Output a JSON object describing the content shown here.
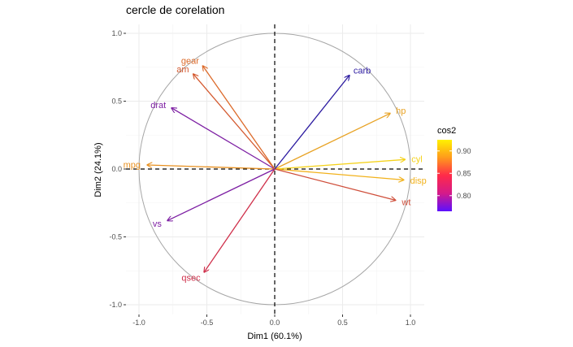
{
  "chart_data": {
    "type": "scatter",
    "title": "cercle de corelation",
    "xlabel": "Dim1 (60.1%)",
    "ylabel": "Dim2 (24.1%)",
    "xlim": [
      -1.0,
      1.1
    ],
    "ylim": [
      -1.0,
      1.0
    ],
    "xticks": [
      "-1.0",
      "-0.5",
      "0.0",
      "0.5",
      "1.0"
    ],
    "yticks": [
      "-1.0",
      "-0.5",
      "0.0",
      "0.5",
      "1.0"
    ],
    "grid": true,
    "unit_circle": true,
    "variables": [
      {
        "name": "mpg",
        "x": -0.94,
        "y": 0.03,
        "cos2": 0.89,
        "color": "#e8901f"
      },
      {
        "name": "cyl",
        "x": 0.96,
        "y": 0.07,
        "cos2": 0.93,
        "color": "#f5d21a"
      },
      {
        "name": "disp",
        "x": 0.95,
        "y": -0.08,
        "cos2": 0.91,
        "color": "#f2b21c"
      },
      {
        "name": "hp",
        "x": 0.85,
        "y": 0.41,
        "cos2": 0.89,
        "color": "#e8a325"
      },
      {
        "name": "drat",
        "x": -0.76,
        "y": 0.45,
        "cos2": 0.78,
        "color": "#7d1fa3"
      },
      {
        "name": "wt",
        "x": 0.89,
        "y": -0.23,
        "cos2": 0.85,
        "color": "#cf4e3a"
      },
      {
        "name": "qsec",
        "x": -0.52,
        "y": -0.76,
        "cos2": 0.83,
        "color": "#cf2f4a"
      },
      {
        "name": "vs",
        "x": -0.79,
        "y": -0.38,
        "cos2": 0.78,
        "color": "#7d1fa3"
      },
      {
        "name": "am",
        "x": -0.6,
        "y": 0.7,
        "cos2": 0.85,
        "color": "#d4592f"
      },
      {
        "name": "gear",
        "x": -0.53,
        "y": 0.76,
        "cos2": 0.86,
        "color": "#dc6a2a"
      },
      {
        "name": "carb",
        "x": 0.55,
        "y": 0.69,
        "cos2": 0.76,
        "color": "#2b1aa0"
      }
    ],
    "legend": {
      "title": "cos2",
      "ticks": [
        "0.90",
        "0.85",
        "0.80"
      ],
      "placement": "right",
      "colors": [
        "#fff200",
        "#ff9a1c",
        "#ff2a4a",
        "#d41a8a",
        "#5b10ff"
      ]
    }
  }
}
